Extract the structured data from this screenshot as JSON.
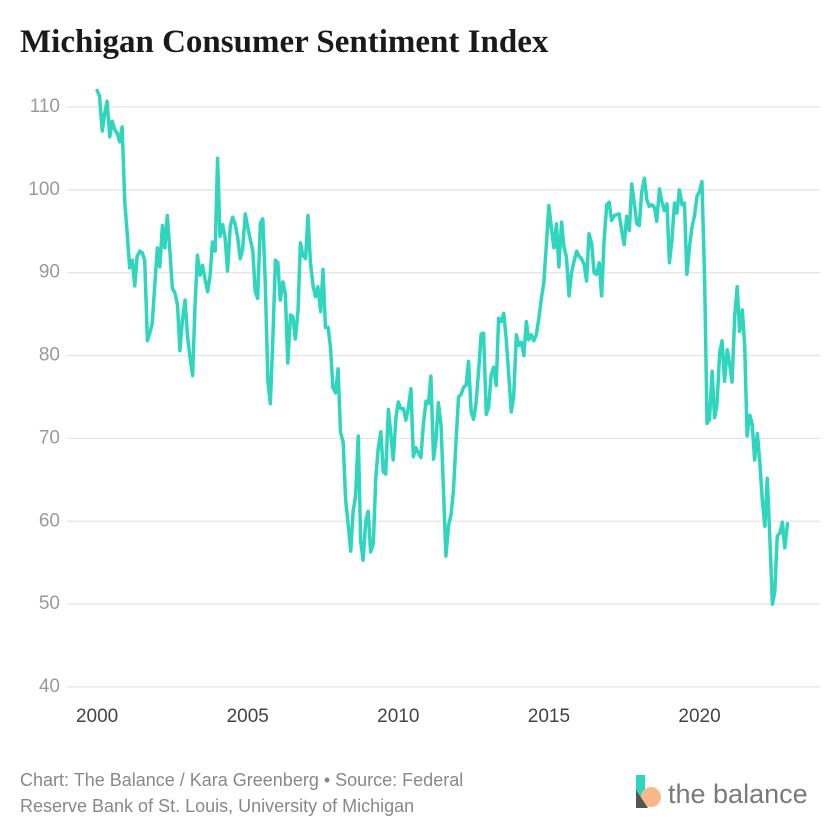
{
  "chart_data": {
    "type": "line",
    "title": "Michigan Consumer Sentiment Index",
    "source": "Chart: The Balance / Kara Greenberg • Source: Federal Reserve Bank of St. Louis, University of Michigan",
    "brand": "the balance",
    "xlim": [
      1999,
      2024
    ],
    "xticks": [
      2000,
      2005,
      2010,
      2015,
      2020
    ],
    "ylim": [
      40,
      110
    ],
    "yticks": [
      40,
      50,
      60,
      70,
      80,
      90,
      100,
      110
    ],
    "grid": true,
    "x": [
      2000,
      2000.08,
      2000.17,
      2000.25,
      2000.33,
      2000.42,
      2000.5,
      2000.58,
      2000.67,
      2000.75,
      2000.83,
      2000.92,
      2001,
      2001.08,
      2001.17,
      2001.25,
      2001.33,
      2001.42,
      2001.5,
      2001.58,
      2001.67,
      2001.75,
      2001.83,
      2001.92,
      2002,
      2002.08,
      2002.17,
      2002.25,
      2002.33,
      2002.42,
      2002.5,
      2002.58,
      2002.67,
      2002.75,
      2002.83,
      2002.92,
      2003,
      2003.08,
      2003.17,
      2003.25,
      2003.33,
      2003.42,
      2003.5,
      2003.58,
      2003.67,
      2003.75,
      2003.83,
      2003.92,
      2004,
      2004.08,
      2004.17,
      2004.25,
      2004.33,
      2004.42,
      2004.5,
      2004.58,
      2004.67,
      2004.75,
      2004.83,
      2004.92,
      2005,
      2005.08,
      2005.17,
      2005.25,
      2005.33,
      2005.42,
      2005.5,
      2005.58,
      2005.67,
      2005.75,
      2005.83,
      2005.92,
      2006,
      2006.08,
      2006.17,
      2006.25,
      2006.33,
      2006.42,
      2006.5,
      2006.58,
      2006.67,
      2006.75,
      2006.83,
      2006.92,
      2007,
      2007.08,
      2007.17,
      2007.25,
      2007.33,
      2007.42,
      2007.5,
      2007.58,
      2007.67,
      2007.75,
      2007.83,
      2007.92,
      2008,
      2008.08,
      2008.17,
      2008.25,
      2008.33,
      2008.42,
      2008.5,
      2008.58,
      2008.67,
      2008.75,
      2008.83,
      2008.92,
      2009,
      2009.08,
      2009.17,
      2009.25,
      2009.33,
      2009.42,
      2009.5,
      2009.58,
      2009.67,
      2009.75,
      2009.83,
      2009.92,
      2010,
      2010.08,
      2010.17,
      2010.25,
      2010.33,
      2010.42,
      2010.5,
      2010.58,
      2010.67,
      2010.75,
      2010.83,
      2010.92,
      2011,
      2011.08,
      2011.17,
      2011.25,
      2011.33,
      2011.42,
      2011.5,
      2011.58,
      2011.67,
      2011.75,
      2011.83,
      2011.92,
      2012,
      2012.08,
      2012.17,
      2012.25,
      2012.33,
      2012.42,
      2012.5,
      2012.58,
      2012.67,
      2012.75,
      2012.83,
      2012.92,
      2013,
      2013.08,
      2013.17,
      2013.25,
      2013.33,
      2013.42,
      2013.5,
      2013.58,
      2013.67,
      2013.75,
      2013.83,
      2013.92,
      2014,
      2014.08,
      2014.17,
      2014.25,
      2014.33,
      2014.42,
      2014.5,
      2014.58,
      2014.67,
      2014.75,
      2014.83,
      2014.92,
      2015,
      2015.08,
      2015.17,
      2015.25,
      2015.33,
      2015.42,
      2015.5,
      2015.58,
      2015.67,
      2015.75,
      2015.83,
      2015.92,
      2016,
      2016.08,
      2016.17,
      2016.25,
      2016.33,
      2016.42,
      2016.5,
      2016.58,
      2016.67,
      2016.75,
      2016.83,
      2016.92,
      2017,
      2017.08,
      2017.17,
      2017.25,
      2017.33,
      2017.42,
      2017.5,
      2017.58,
      2017.67,
      2017.75,
      2017.83,
      2017.92,
      2018,
      2018.08,
      2018.17,
      2018.25,
      2018.33,
      2018.42,
      2018.5,
      2018.58,
      2018.67,
      2018.75,
      2018.83,
      2018.92,
      2019,
      2019.08,
      2019.17,
      2019.25,
      2019.33,
      2019.42,
      2019.5,
      2019.58,
      2019.67,
      2019.75,
      2019.83,
      2019.92,
      2020,
      2020.08,
      2020.17,
      2020.25,
      2020.33,
      2020.42,
      2020.5,
      2020.58,
      2020.67,
      2020.75,
      2020.83,
      2020.92,
      2021,
      2021.08,
      2021.17,
      2021.25,
      2021.33,
      2021.42,
      2021.5,
      2021.58,
      2021.67,
      2021.75,
      2021.83,
      2021.92,
      2022,
      2022.08,
      2022.17,
      2022.25,
      2022.33,
      2022.42,
      2022.5,
      2022.58,
      2022.67,
      2022.75,
      2022.83,
      2022.92
    ],
    "series": [
      {
        "color": "#2fd5bd",
        "values": [
          112.0,
          111.3,
          107.1,
          109.2,
          110.7,
          106.4,
          108.3,
          107.3,
          106.8,
          105.8,
          107.6,
          98.4,
          94.7,
          90.6,
          91.5,
          88.4,
          92.0,
          92.6,
          92.4,
          91.5,
          81.8,
          82.7,
          83.9,
          88.8,
          93.0,
          90.7,
          95.7,
          93.0,
          96.9,
          92.4,
          88.1,
          87.6,
          86.1,
          80.6,
          84.2,
          86.7,
          82.4,
          79.9,
          77.6,
          86.0,
          92.1,
          89.7,
          90.9,
          89.3,
          87.7,
          89.6,
          93.7,
          92.6,
          103.8,
          94.4,
          95.8,
          94.2,
          90.2,
          95.6,
          96.7,
          95.9,
          94.2,
          91.7,
          92.8,
          97.1,
          95.5,
          94.1,
          92.6,
          87.7,
          86.9,
          96.0,
          96.5,
          89.1,
          76.9,
          74.2,
          81.6,
          91.5,
          91.2,
          86.7,
          88.9,
          87.4,
          79.1,
          84.9,
          84.7,
          82.0,
          85.4,
          93.6,
          92.1,
          91.7,
          96.9,
          91.3,
          88.4,
          87.1,
          88.3,
          85.3,
          90.4,
          83.4,
          83.4,
          80.9,
          76.1,
          75.5,
          78.4,
          70.8,
          69.5,
          62.6,
          59.8,
          56.4,
          61.2,
          63.0,
          70.3,
          57.6,
          55.3,
          60.1,
          61.2,
          56.3,
          57.3,
          65.1,
          68.7,
          70.8,
          66.0,
          65.7,
          73.5,
          70.6,
          67.4,
          72.5,
          74.4,
          73.6,
          73.6,
          72.2,
          73.6,
          76.0,
          67.8,
          68.9,
          68.2,
          67.7,
          71.6,
          74.5,
          74.2,
          77.5,
          67.5,
          69.8,
          74.3,
          71.5,
          63.7,
          55.8,
          59.5,
          60.8,
          63.7,
          69.9,
          75.0,
          75.3,
          76.2,
          76.4,
          79.3,
          73.2,
          72.3,
          74.3,
          78.3,
          82.6,
          82.7,
          72.9,
          73.8,
          77.6,
          78.6,
          76.4,
          84.5,
          84.1,
          85.1,
          82.1,
          77.5,
          73.2,
          75.1,
          82.5,
          81.2,
          81.6,
          80.0,
          84.1,
          81.9,
          82.5,
          81.8,
          82.5,
          84.6,
          86.9,
          88.8,
          93.6,
          98.1,
          95.4,
          93.0,
          95.9,
          90.7,
          96.1,
          93.1,
          91.9,
          87.2,
          90.0,
          91.3,
          92.6,
          92.0,
          91.7,
          91.0,
          89.0,
          94.7,
          93.5,
          90.0,
          89.8,
          91.2,
          87.2,
          93.8,
          98.2,
          98.5,
          96.3,
          96.9,
          97.0,
          97.1,
          95.0,
          93.4,
          96.8,
          95.1,
          100.7,
          98.5,
          95.9,
          95.7,
          99.7,
          101.4,
          98.8,
          98.0,
          98.2,
          97.9,
          96.2,
          100.1,
          98.6,
          97.5,
          98.3,
          91.2,
          93.8,
          98.4,
          97.2,
          100.0,
          98.2,
          98.4,
          89.8,
          93.2,
          95.5,
          96.8,
          99.3,
          99.8,
          101.0,
          89.1,
          71.8,
          72.3,
          78.1,
          72.5,
          74.1,
          80.4,
          81.8,
          76.9,
          80.7,
          79.0,
          76.8,
          84.9,
          88.3,
          82.9,
          85.5,
          81.2,
          70.3,
          72.8,
          71.7,
          67.4,
          70.6,
          67.2,
          62.8,
          59.4,
          65.2,
          58.4,
          50.0,
          51.5,
          58.2,
          58.6,
          59.9,
          56.8,
          59.7
        ]
      }
    ]
  }
}
